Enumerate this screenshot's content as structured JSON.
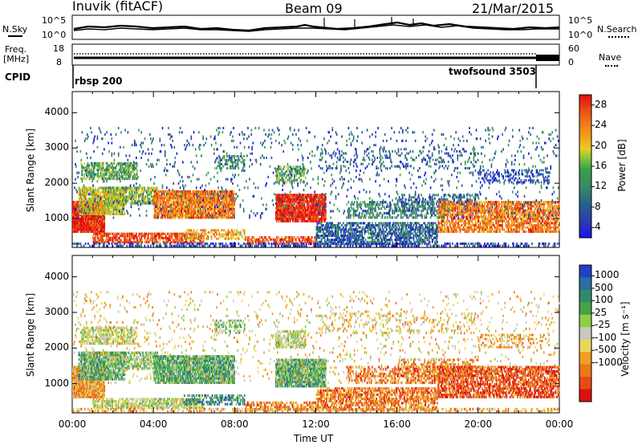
{
  "header": {
    "station": "Inuvik (fitACF)",
    "beam": "Beam 09",
    "date": "21/Mar/2015"
  },
  "top_panels": {
    "nsky_label": "N.Sky",
    "nsky_ticks": [
      "10^5",
      "10^0"
    ],
    "nsearch_label": "N.Search",
    "nsearch_ticks": [
      "10^5",
      "10^0"
    ],
    "freq_label_1": "Freq.",
    "freq_label_2": "[MHz]",
    "freq_ticks": [
      "18",
      "8"
    ],
    "nave_label": "Nave",
    "nave_ticks": [
      "60",
      "0"
    ],
    "cpid_label": "CPID",
    "cpid_programs": [
      {
        "name": "rbsp 200",
        "start_hour": 0
      },
      {
        "name": "twofsound 3503",
        "start_hour": 22.9
      }
    ]
  },
  "chart_data": [
    {
      "type": "heatmap",
      "title": "Power",
      "ylabel": "Slant Range [km]",
      "xlabel": "",
      "x_range_hours": [
        0,
        24
      ],
      "ylim": [
        180,
        4600
      ],
      "y_ticks": [
        "1000",
        "2000",
        "3000",
        "4000"
      ],
      "colorbar": {
        "label": "Power [dB]",
        "ticks": [
          "4",
          "8",
          "12",
          "16",
          "20",
          "24",
          "28"
        ],
        "colors": [
          "#1a10f0",
          "#2a3fa8",
          "#23658a",
          "#3b8a66",
          "#3aa048",
          "#8cc63a",
          "#e8d020",
          "#f2a21a",
          "#ef7a17",
          "#ea4a16",
          "#e01010"
        ]
      }
    },
    {
      "type": "heatmap",
      "title": "Velocity",
      "ylabel": "Slant Range [km]",
      "xlabel": "Time UT",
      "x_range_hours": [
        0,
        24
      ],
      "x_ticks": [
        "00:00",
        "04:00",
        "08:00",
        "12:00",
        "16:00",
        "20:00",
        "00:00"
      ],
      "ylim": [
        180,
        4600
      ],
      "y_ticks": [
        "1000",
        "2000",
        "3000",
        "4000"
      ],
      "colorbar": {
        "label": "Velocity [m s⁻¹]",
        "ticks": [
          "1000",
          "500",
          "100",
          "25",
          "-25",
          "-100",
          "-500",
          "-1000"
        ],
        "colors": [
          "#2240c8",
          "#2a6fa0",
          "#2f8a6a",
          "#46a24a",
          "#8cd046",
          "#c8c8c0",
          "#e8d85a",
          "#f0a020",
          "#ec7818",
          "#e84a14",
          "#dc1010"
        ]
      }
    }
  ]
}
